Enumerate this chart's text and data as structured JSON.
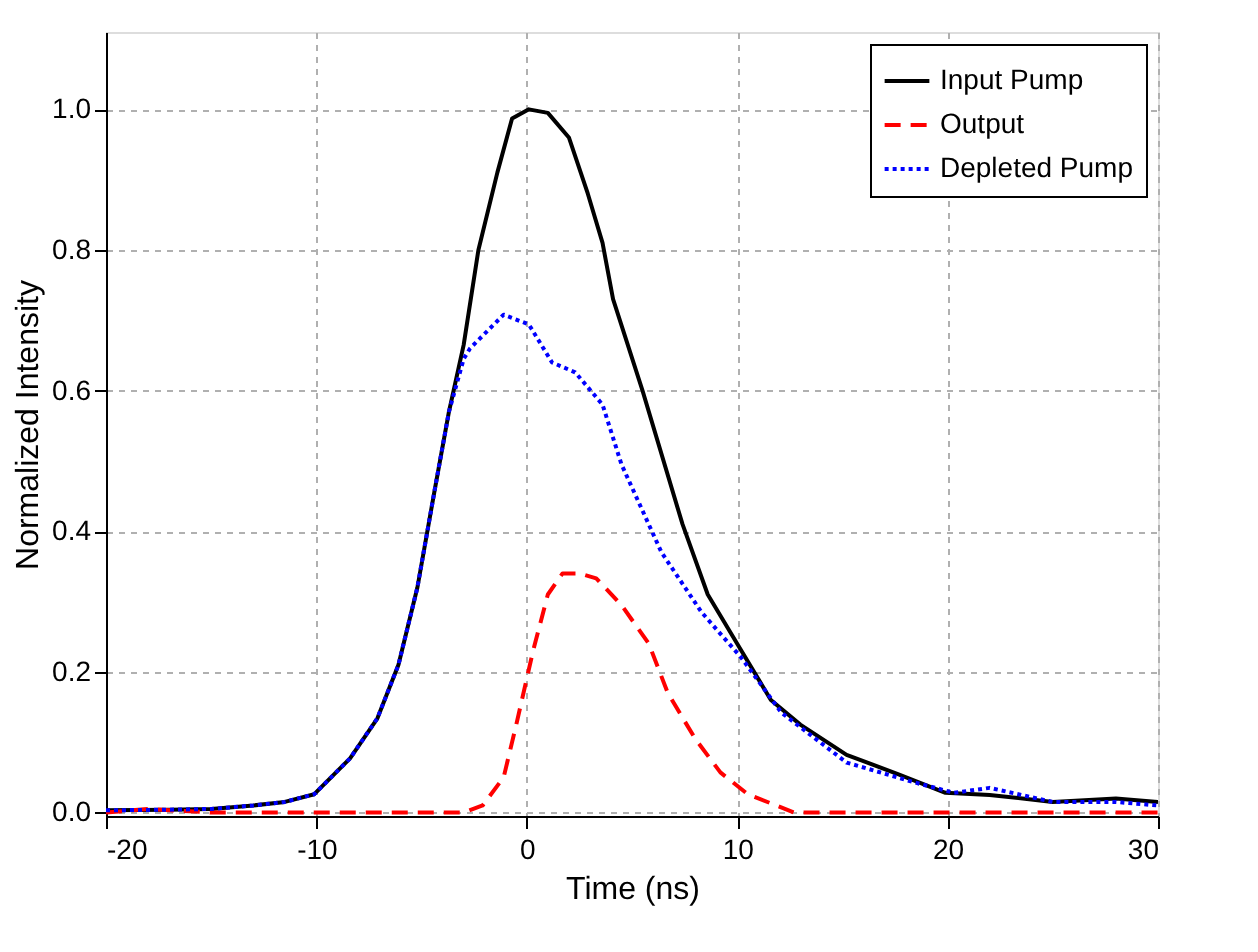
{
  "chart_data": {
    "type": "line",
    "xlabel": "Time (ns)",
    "ylabel": "Normalized Intensity",
    "xlim": [
      -20,
      30
    ],
    "ylim": [
      -0.005,
      1.11
    ],
    "xticks": [
      -20,
      -10,
      0,
      10,
      20,
      30
    ],
    "yticks": [
      {
        "value": 0,
        "label": "0.0"
      },
      0.2,
      0.4,
      0.6,
      0.8,
      {
        "value": 1,
        "label": "1.0"
      }
    ],
    "grid": true,
    "legend": "top right",
    "marker": "none",
    "series": [
      {
        "name": "Input Pump",
        "color": "#000000",
        "line_style": "solid",
        "x": [
          -20,
          -17,
          -15,
          -13,
          -11.5,
          -10.1,
          -8.4,
          -7.1,
          -6.1,
          -5.2,
          -4.4,
          -3.7,
          -3.0,
          -2.3,
          -1.4,
          -0.7,
          0.1,
          1.0,
          2.0,
          2.9,
          3.6,
          4.1,
          5.5,
          7.4,
          8.6,
          10.0,
          11.6,
          13.0,
          15.2,
          17.7,
          19.9,
          22,
          25,
          28,
          30
        ],
        "values": [
          0.003,
          0.004,
          0.005,
          0.01,
          0.015,
          0.026,
          0.077,
          0.134,
          0.21,
          0.32,
          0.455,
          0.57,
          0.665,
          0.8,
          0.91,
          0.987,
          1.0,
          0.995,
          0.96,
          0.88,
          0.81,
          0.73,
          0.6,
          0.41,
          0.31,
          0.24,
          0.16,
          0.125,
          0.082,
          0.054,
          0.028,
          0.025,
          0.015,
          0.02,
          0.015
        ]
      },
      {
        "name": "Output",
        "color": "#ff0000",
        "line_style": "dashed",
        "x": [
          -20,
          -18,
          -15,
          -10,
          -5,
          -3,
          -2.1,
          -1.1,
          -0.5,
          0.3,
          1.0,
          1.7,
          2.5,
          3.3,
          4.5,
          5.8,
          6.7,
          8.0,
          9.2,
          10.5,
          12.7,
          15,
          20,
          25,
          30
        ],
        "values": [
          0.0,
          0.005,
          0.0,
          0.0,
          0.0,
          0.0,
          0.01,
          0.05,
          0.125,
          0.23,
          0.31,
          0.34,
          0.34,
          0.333,
          0.295,
          0.24,
          0.17,
          0.105,
          0.057,
          0.026,
          0.0,
          0.0,
          0.0,
          0.0,
          0.0
        ]
      },
      {
        "name": "Depleted Pump",
        "color": "#0000ff",
        "line_style": "dotted",
        "x": [
          -20,
          -17,
          -15,
          -13,
          -11.5,
          -10.1,
          -8.4,
          -7.1,
          -6.1,
          -5.2,
          -4.4,
          -3.7,
          -3.0,
          -2.7,
          -1.1,
          0.1,
          1.2,
          2.3,
          3.6,
          4.5,
          6.4,
          8.3,
          10.2,
          12.1,
          15.2,
          18.4,
          20.3,
          22,
          25,
          28,
          30
        ],
        "values": [
          0.003,
          0.004,
          0.005,
          0.01,
          0.015,
          0.026,
          0.077,
          0.134,
          0.21,
          0.32,
          0.455,
          0.57,
          0.645,
          0.66,
          0.708,
          0.694,
          0.64,
          0.626,
          0.58,
          0.495,
          0.37,
          0.285,
          0.22,
          0.142,
          0.071,
          0.043,
          0.028,
          0.035,
          0.015,
          0.015,
          0.01
        ]
      }
    ]
  }
}
